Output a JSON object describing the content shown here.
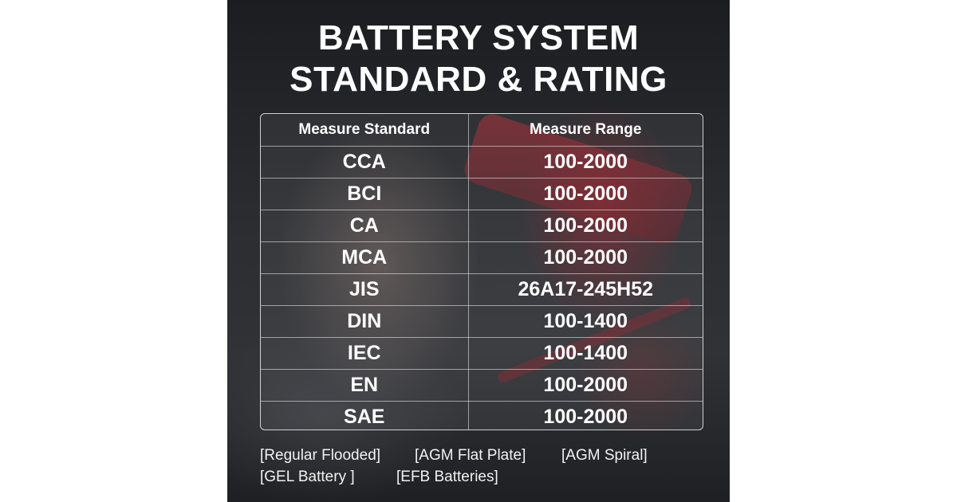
{
  "title": {
    "line1": "BATTERY SYSTEM",
    "line2": "STANDARD & RATING"
  },
  "table": {
    "headers": [
      "Measure Standard",
      "Measure Range"
    ],
    "rows": [
      [
        "CCA",
        "100-2000"
      ],
      [
        "BCI",
        "100-2000"
      ],
      [
        "CA",
        "100-2000"
      ],
      [
        "MCA",
        "100-2000"
      ],
      [
        "JIS",
        "26A17-245H52"
      ],
      [
        "DIN",
        "100-1400"
      ],
      [
        "IEC",
        "100-1400"
      ],
      [
        "EN",
        "100-2000"
      ],
      [
        "SAE",
        "100-2000"
      ]
    ]
  },
  "battery_types": {
    "row1": [
      "[Regular Flooded]",
      "[AGM Flat Plate]",
      "[AGM Spiral]"
    ],
    "row2": [
      "[GEL Battery ]",
      "[EFB Batteries]"
    ]
  },
  "colors": {
    "background": "#26272b",
    "text": "#ffffff",
    "accent_photo": "#b42832"
  }
}
